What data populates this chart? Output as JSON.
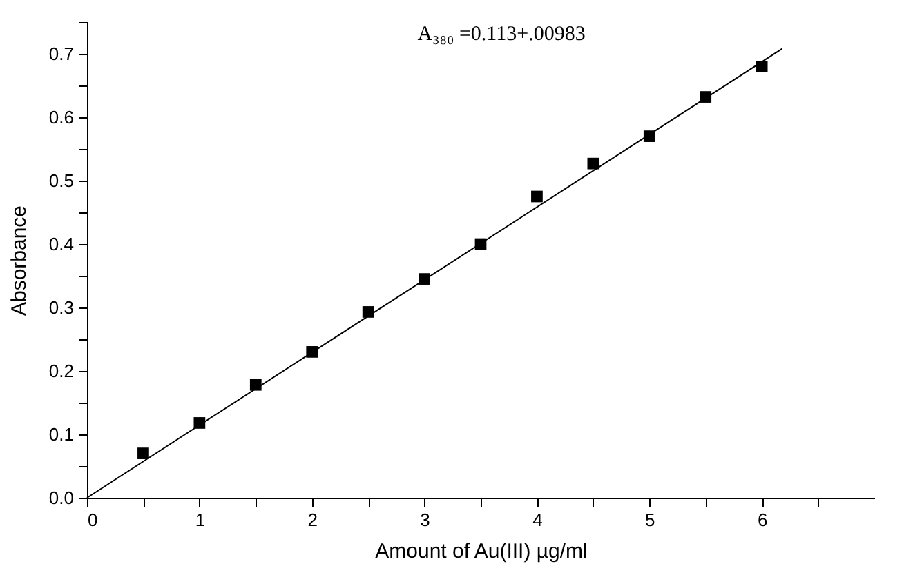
{
  "chart_data": {
    "type": "scatter",
    "xlabel": "Amount of Au(III) µg/ml",
    "ylabel": "Absorbance",
    "annotations": [
      "A₃₈₀ =0.113+.00983"
    ],
    "x": [
      0.5,
      1,
      1.5,
      2,
      2.5,
      3,
      3.5,
      4,
      4.5,
      5,
      5.5,
      6
    ],
    "series": [
      {
        "color": "#000000",
        "marker": "square",
        "values": [
          0.07,
          0.118,
          0.178,
          0.23,
          0.293,
          0.345,
          0.4,
          0.475,
          0.527,
          0.57,
          0.632,
          0.68
        ]
      },
      {
        "type": "line",
        "color": "#000000",
        "marker": "none",
        "x": [
          0,
          6.18
        ],
        "values": [
          0,
          0.708
        ]
      }
    ],
    "xlim": [
      0,
      7
    ],
    "xticks": [
      0,
      {
        "value": 0.5,
        "label": null
      },
      1,
      {
        "value": 1.5,
        "label": null
      },
      2,
      {
        "value": 2.5,
        "label": null
      },
      3,
      {
        "value": 3.5,
        "label": null
      },
      4,
      {
        "value": 4.5,
        "label": null
      },
      5,
      {
        "value": 5.5,
        "label": null
      },
      6,
      {
        "value": 6.5,
        "label": null
      }
    ],
    "ylim": [
      0,
      0.75
    ],
    "yticks": [
      {
        "value": 0,
        "label": "0.0"
      },
      {
        "value": 0.05,
        "label": null
      },
      0.1,
      {
        "value": 0.15,
        "label": null
      },
      0.2,
      {
        "value": 0.25,
        "label": null
      },
      0.3,
      {
        "value": 0.35,
        "label": null
      },
      0.4,
      {
        "value": 0.45,
        "label": null
      },
      0.5,
      {
        "value": 0.55,
        "label": null
      },
      0.6,
      {
        "value": 0.65,
        "label": null
      },
      0.7,
      {
        "value": 0.75,
        "label": null
      }
    ],
    "grid": false
  }
}
